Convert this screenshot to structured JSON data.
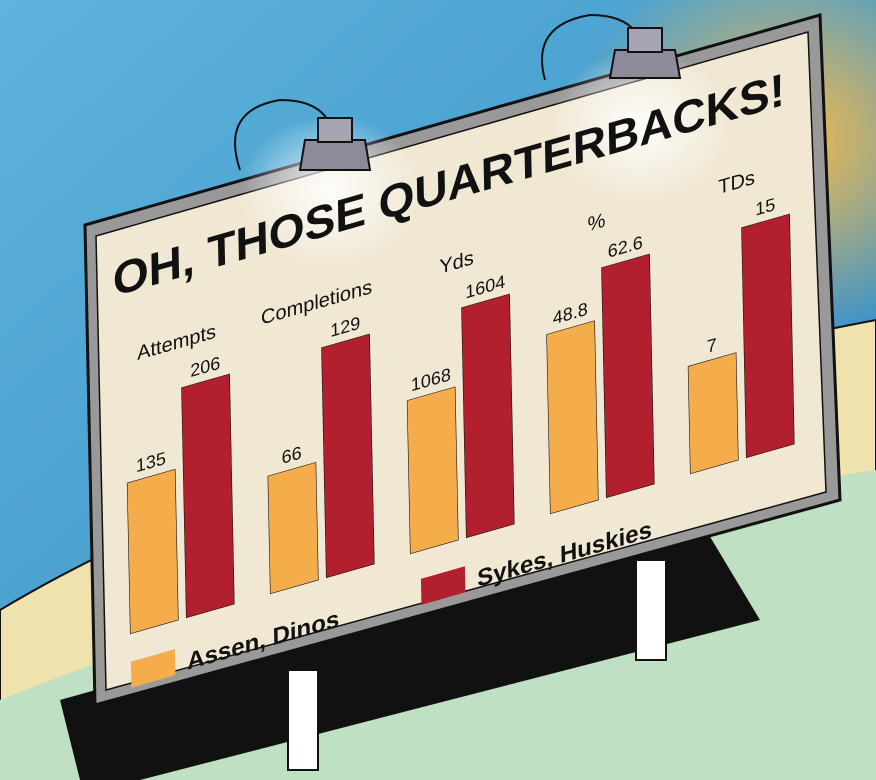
{
  "chart_data": {
    "type": "bar",
    "title": "OH, THOSE QUARTERBACKS!",
    "categories": [
      "Attempts",
      "Completions",
      "Yds",
      "%",
      "TDs"
    ],
    "series": [
      {
        "name": "Assen, Dinos",
        "color": "#f5ad4c",
        "values": [
          135,
          66,
          1068,
          48.8,
          7
        ]
      },
      {
        "name": "Sykes, Huskies",
        "color": "#b21f2f",
        "values": [
          206,
          129,
          1604,
          62.6,
          15
        ]
      }
    ]
  }
}
